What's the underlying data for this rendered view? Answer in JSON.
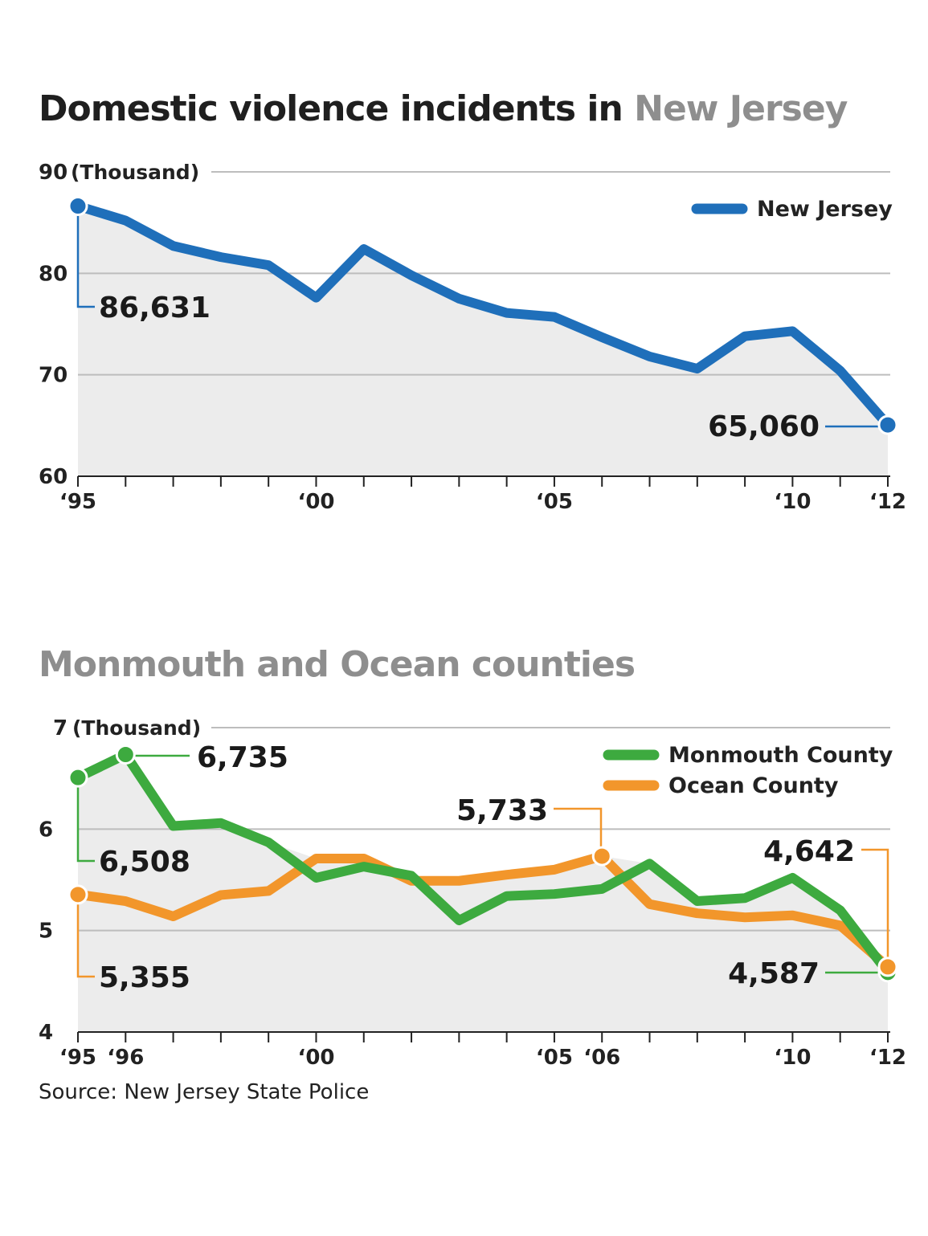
{
  "titles": {
    "chart1_prefix": "Domestic violence incidents in ",
    "chart1_highlight": "New Jersey",
    "chart2": "Monmouth and Ocean counties"
  },
  "source": "Source: New Jersey State Police",
  "colors": {
    "new_jersey": "#1f6fba",
    "monmouth": "#3daa3f",
    "ocean": "#f2962b",
    "area_fill": "#ececec",
    "grid": "#bdbdbd",
    "title_gray": "#8e8e8e"
  },
  "chart_data": [
    {
      "type": "area",
      "title": "Domestic violence incidents in New Jersey",
      "ylabel": "(Thousand)",
      "ylim": [
        60,
        90
      ],
      "yticks": [
        60,
        70,
        80,
        90
      ],
      "ytick_labels": [
        "60",
        "70",
        "80",
        "90"
      ],
      "grid": true,
      "legend_position": "top-right",
      "x": [
        1995,
        1996,
        1997,
        1998,
        1999,
        2000,
        2001,
        2002,
        2003,
        2004,
        2005,
        2006,
        2007,
        2008,
        2009,
        2010,
        2011,
        2012
      ],
      "xtick_labels": [
        {
          "x": 1995,
          "label": "‘95"
        },
        {
          "x": 2000,
          "label": "‘00"
        },
        {
          "x": 2005,
          "label": "‘05"
        },
        {
          "x": 2010,
          "label": "‘10"
        },
        {
          "x": 2012,
          "label": "‘12"
        }
      ],
      "series": [
        {
          "name": "New Jersey",
          "values": [
            86.631,
            85.2,
            82.7,
            81.6,
            80.8,
            77.6,
            82.4,
            79.8,
            77.5,
            76.1,
            75.7,
            73.7,
            71.8,
            70.6,
            73.8,
            74.3,
            70.4,
            65.06
          ]
        }
      ],
      "annotations": [
        {
          "series": 0,
          "x": 1995,
          "label": "86,631"
        },
        {
          "series": 0,
          "x": 2012,
          "label": "65,060"
        }
      ]
    },
    {
      "type": "area",
      "title": "Monmouth and Ocean counties",
      "ylabel": "(Thousand)",
      "ylim": [
        4,
        7
      ],
      "yticks": [
        4,
        5,
        6,
        7
      ],
      "ytick_labels": [
        "4",
        "5",
        "6",
        "7"
      ],
      "grid": true,
      "legend_position": "top-right",
      "x": [
        1995,
        1996,
        1997,
        1998,
        1999,
        2000,
        2001,
        2002,
        2003,
        2004,
        2005,
        2006,
        2007,
        2008,
        2009,
        2010,
        2011,
        2012
      ],
      "xtick_labels": [
        {
          "x": 1995,
          "label": "‘95"
        },
        {
          "x": 1996,
          "label": "‘96"
        },
        {
          "x": 2000,
          "label": "‘00"
        },
        {
          "x": 2005,
          "label": "‘05"
        },
        {
          "x": 2006,
          "label": "‘06"
        },
        {
          "x": 2010,
          "label": "‘10"
        },
        {
          "x": 2012,
          "label": "‘12"
        }
      ],
      "series": [
        {
          "name": "Monmouth County",
          "values": [
            6.508,
            6.735,
            6.03,
            6.06,
            5.87,
            5.52,
            5.63,
            5.54,
            5.1,
            5.34,
            5.36,
            5.41,
            5.66,
            5.29,
            5.32,
            5.52,
            5.2,
            4.587
          ]
        },
        {
          "name": "Ocean County",
          "values": [
            5.355,
            5.29,
            5.14,
            5.35,
            5.39,
            5.71,
            5.71,
            5.49,
            5.49,
            5.55,
            5.6,
            5.733,
            5.26,
            5.17,
            5.13,
            5.15,
            5.05,
            4.642
          ]
        }
      ],
      "annotations": [
        {
          "series": 0,
          "x": 1995,
          "label": "6,508"
        },
        {
          "series": 0,
          "x": 1996,
          "label": "6,735"
        },
        {
          "series": 0,
          "x": 2012,
          "label": "4,587"
        },
        {
          "series": 1,
          "x": 1995,
          "label": "5,355"
        },
        {
          "series": 1,
          "x": 2006,
          "label": "5,733"
        },
        {
          "series": 1,
          "x": 2012,
          "label": "4,642"
        }
      ]
    }
  ]
}
